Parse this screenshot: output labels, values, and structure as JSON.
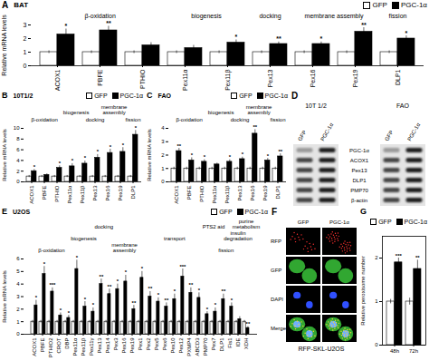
{
  "chart_data": [
    {
      "panel": "A",
      "type": "bar",
      "title": "BAT",
      "y_label": "Relative mRNA levels",
      "categories": [
        "ACOX1",
        "PBFE",
        "PTHIO",
        "Pex11α",
        "Pex11β",
        "Pex13",
        "Pex16",
        "Pex19",
        "DLP1"
      ],
      "series": [
        {
          "name": "GFP",
          "color": "#ffffff",
          "values": [
            1,
            1,
            1,
            1,
            1,
            1,
            1,
            1,
            1
          ],
          "errors": [
            0.1,
            0.1,
            0.1,
            0.1,
            0.1,
            0.1,
            0.1,
            0.1,
            0.1
          ]
        },
        {
          "name": "PGC-1α",
          "color": "#000000",
          "values": [
            2.3,
            2.6,
            1.5,
            1.3,
            1.7,
            1.6,
            1.6,
            2.5,
            2.0
          ],
          "errors": [
            0.4,
            0.3,
            0.2,
            0.2,
            0.2,
            0.15,
            0.15,
            0.3,
            0.2
          ],
          "significance": [
            "*",
            "**",
            null,
            null,
            "*",
            "**",
            "*",
            "**",
            "*"
          ]
        }
      ],
      "ylim": [
        0,
        3
      ],
      "yticks": [
        0,
        1,
        2,
        3
      ],
      "legend": "top",
      "annotations": [
        {
          "text": "β-oxidation",
          "from": "ACOX1",
          "to": "PTHIO"
        },
        {
          "text": "biogenesis",
          "from": "Pex11α",
          "to": "Pex11β"
        },
        {
          "text": "docking",
          "from": "Pex13",
          "to": "Pex13"
        },
        {
          "text": "membrane assembly",
          "from": "Pex16",
          "to": "Pex19"
        },
        {
          "text": "fission",
          "from": "DLP1",
          "to": "DLP1"
        }
      ]
    },
    {
      "panel": "B",
      "type": "bar",
      "title": "10T1/2",
      "y_label": "Relative mRNA levels",
      "categories": [
        "ACOX1",
        "PBFE",
        "PTHIO",
        "Pex11α",
        "Pex11β",
        "Pex13",
        "Pex16",
        "Pex19",
        "DLP1"
      ],
      "series": [
        {
          "name": "GFP",
          "color": "#ffffff",
          "values": [
            1,
            1,
            1,
            1,
            1,
            1,
            1,
            1,
            1
          ],
          "errors": [
            0.2,
            0.2,
            0.2,
            0.2,
            0.2,
            0.2,
            0.2,
            0.2,
            0.2
          ]
        },
        {
          "name": "PGC-1α",
          "color": "#000000",
          "values": [
            2.0,
            1.3,
            2.6,
            2.9,
            3.4,
            4.5,
            5.4,
            5.6,
            8.8
          ],
          "errors": [
            0.3,
            0.2,
            0.4,
            0.5,
            0.5,
            0.6,
            0.7,
            0.8,
            0.8
          ],
          "significance": [
            "*",
            null,
            "*",
            "*",
            "*",
            "*",
            "*",
            "*",
            "*"
          ]
        }
      ],
      "ylim": [
        0,
        10
      ],
      "yticks": [
        0,
        2,
        4,
        6,
        8,
        10
      ],
      "legend": "top",
      "annotations": [
        {
          "text": "β-oxidation",
          "from": "ACOX1",
          "to": "PTHIO"
        },
        {
          "text": "biogenesis",
          "from": "Pex11α",
          "to": "Pex11β"
        },
        {
          "text": "docking",
          "from": "Pex13",
          "to": "Pex13"
        },
        {
          "text": "membrane assembly",
          "from": "Pex16",
          "to": "Pex19"
        },
        {
          "text": "fission",
          "from": "DLP1",
          "to": "DLP1"
        }
      ]
    },
    {
      "panel": "C",
      "type": "bar",
      "title": "FAO",
      "y_label": "Relative mRNA levels",
      "categories": [
        "ACOX1",
        "PBFE",
        "PTHIO",
        "Pex11α",
        "Pex11β",
        "Pex13",
        "Pex16",
        "Pex19",
        "DLP1"
      ],
      "series": [
        {
          "name": "GFP",
          "color": "#ffffff",
          "values": [
            1,
            1,
            1,
            1,
            1,
            1,
            1,
            1,
            1
          ],
          "errors": [
            0.1,
            0.1,
            0.1,
            0.1,
            0.1,
            0.1,
            0.1,
            0.1,
            0.1
          ]
        },
        {
          "name": "PGC-1α",
          "color": "#000000",
          "values": [
            2.3,
            1.6,
            1.5,
            1.3,
            1.5,
            1.7,
            3.6,
            1.6,
            1.9
          ],
          "errors": [
            0.2,
            0.2,
            0.15,
            0.1,
            0.15,
            0.15,
            0.3,
            0.15,
            0.2
          ],
          "significance": [
            "**",
            "*",
            "*",
            null,
            "*",
            "*",
            "**",
            "*",
            "**"
          ]
        }
      ],
      "ylim": [
        0,
        4
      ],
      "yticks": [
        0,
        1,
        2,
        3,
        4
      ],
      "legend": "top",
      "annotations": [
        {
          "text": "β-oxidation",
          "from": "ACOX1",
          "to": "PTHIO"
        },
        {
          "text": "biogenesis",
          "from": "Pex11α",
          "to": "Pex11β"
        },
        {
          "text": "docking",
          "from": "Pex13",
          "to": "Pex13"
        },
        {
          "text": "membrane assembly",
          "from": "Pex16",
          "to": "Pex19"
        },
        {
          "text": "fission",
          "from": "DLP1",
          "to": "DLP1"
        }
      ]
    },
    {
      "panel": "E",
      "type": "bar",
      "title": "U2OS",
      "y_label": "Relative mRNA levels",
      "categories": [
        "ACOX1",
        "PBFE",
        "PTHIO2",
        "CROT",
        "DBP",
        "Pex11α",
        "Pex11β",
        "Pex11γ",
        "Pex13",
        "Pex14",
        "Pex3",
        "Pex16",
        "Pex19",
        "Pex1",
        "Pex2",
        "Pex5",
        "Pex6",
        "Pex10",
        "Pex12",
        "PXMP4",
        "ABCD3",
        "PMP70",
        "Pex7",
        "DLP1",
        "Fis1",
        "IDE",
        "XDH"
      ],
      "series": [
        {
          "name": "GFP",
          "color": "#ffffff",
          "values": [
            1,
            1,
            1,
            1,
            1,
            1,
            1,
            1,
            1,
            1,
            1,
            1,
            1,
            1,
            1,
            1,
            1,
            1,
            1,
            1,
            1,
            1,
            1,
            1,
            1,
            1,
            1
          ],
          "errors": [
            0.1,
            0.1,
            0.1,
            0.1,
            0.1,
            0.1,
            0.1,
            0.1,
            0.1,
            0.1,
            0.1,
            0.1,
            0.1,
            0.1,
            0.1,
            0.1,
            0.1,
            0.1,
            0.1,
            0.1,
            0.1,
            0.1,
            0.1,
            0.1,
            0.1,
            0.1,
            0.1
          ]
        },
        {
          "name": "PGC-1α",
          "color": "#000000",
          "values": [
            2.3,
            4.8,
            3.4,
            1.5,
            1.3,
            5.2,
            2.2,
            1.8,
            4.0,
            3.2,
            3.6,
            4.2,
            2.0,
            4.5,
            3.0,
            2.6,
            2.2,
            2.8,
            4.6,
            3.3,
            2.9,
            1.6,
            1.8,
            2.8,
            2.2,
            1.2,
            0.5
          ],
          "errors": [
            0.4,
            0.6,
            0.3,
            0.2,
            0.2,
            0.7,
            0.4,
            0.3,
            0.4,
            0.4,
            0.4,
            0.5,
            0.3,
            0.5,
            0.4,
            0.3,
            0.3,
            0.4,
            0.6,
            0.4,
            0.4,
            0.2,
            0.3,
            0.4,
            0.3,
            0.2,
            0.1
          ],
          "significance": [
            "*",
            "*",
            "***",
            "*",
            "*",
            "*",
            "*",
            "*",
            "**",
            "**",
            "*",
            "*",
            "**",
            "*",
            "**",
            "*",
            "**",
            "*",
            "***",
            "**",
            "*",
            "*",
            "*",
            "**",
            "*",
            null,
            "**"
          ]
        }
      ],
      "ylim": [
        0,
        6
      ],
      "yticks": [
        0,
        1,
        2,
        3,
        4,
        5,
        6
      ],
      "legend": "top",
      "annotations": [
        {
          "text": "β-oxidation",
          "from": "ACOX1",
          "to": "DBP"
        },
        {
          "text": "biogenesis",
          "from": "Pex11α",
          "to": "Pex11γ"
        },
        {
          "text": "docking",
          "from": "Pex13",
          "to": "Pex14"
        },
        {
          "text": "membrane assembly",
          "from": "Pex3",
          "to": "Pex19"
        },
        {
          "text": "transport",
          "from": "Pex1",
          "to": "PMP70"
        },
        {
          "text": "PTS2 aid",
          "from": "Pex7",
          "to": "Pex7"
        },
        {
          "text": "fission",
          "from": "DLP1",
          "to": "Fis1"
        },
        {
          "text": "insulin degradation",
          "from": "IDE",
          "to": "IDE"
        },
        {
          "text": "purine metabolism",
          "from": "XDH",
          "to": "XDH"
        }
      ]
    },
    {
      "panel": "G",
      "type": "bar",
      "y_label": "Relative peroxisome number",
      "categories": [
        "48h",
        "72h"
      ],
      "series": [
        {
          "name": "GFP",
          "color": "#ffffff",
          "values": [
            1,
            1
          ],
          "errors": [
            0.05,
            0.08
          ]
        },
        {
          "name": "PGC-1α",
          "color": "#000000",
          "values": [
            1.9,
            1.75
          ],
          "errors": [
            0.1,
            0.2
          ],
          "significance": [
            "***",
            "**"
          ]
        }
      ],
      "ylim": [
        0,
        2.5
      ],
      "yticks": [
        0,
        1,
        2
      ],
      "legend": "top"
    }
  ],
  "blot": {
    "panel": "D",
    "groups": [
      {
        "title": "10T 1/2",
        "lanes": [
          "GFP",
          "PGC-1α"
        ]
      },
      {
        "title": "FAO",
        "lanes": [
          "GFP",
          "PGC-1α"
        ]
      }
    ],
    "rows": [
      "PGC-1α",
      "ACOX1",
      "Pex13",
      "DLP1",
      "PMP70",
      "β-actin"
    ]
  },
  "microscopy": {
    "panel": "F",
    "columns": [
      "GFP",
      "PGC-1α"
    ],
    "rows": [
      "RFP",
      "GFP",
      "DAPI",
      "Merge"
    ],
    "caption": "RFP-SKL-U2OS"
  }
}
